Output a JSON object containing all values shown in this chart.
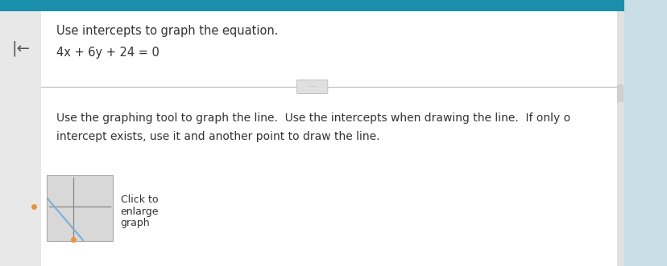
{
  "bg_color": "#c8dde6",
  "main_bg": "#f0f0f0",
  "content_bg": "#f5f5f5",
  "title": "Use intercepts to graph the equation.",
  "equation": "4x + 6y + 24 = 0",
  "instruction_line1": "Use the graphing tool to graph the line.  Use the intercepts when drawing the line.  If only o",
  "instruction_line2": "intercept exists, use it and another point to draw the line.",
  "click_text_lines": [
    "Click to",
    "enlarge",
    "graph"
  ],
  "separator_color": "#bbbbbb",
  "text_color": "#333333",
  "top_bar_color": "#1a8fab",
  "line_color": "#7bafd4",
  "dot_color": "#e8943a",
  "mini_graph_bg": "#d8d8d8",
  "mini_graph_border": "#aaaaaa",
  "axis_color": "#888888",
  "arrow_color": "#555555",
  "sidebar_bg": "#e8e8e8",
  "right_bar_color": "#d0cece",
  "figw": 8.29,
  "figh": 3.31,
  "dpi": 100
}
